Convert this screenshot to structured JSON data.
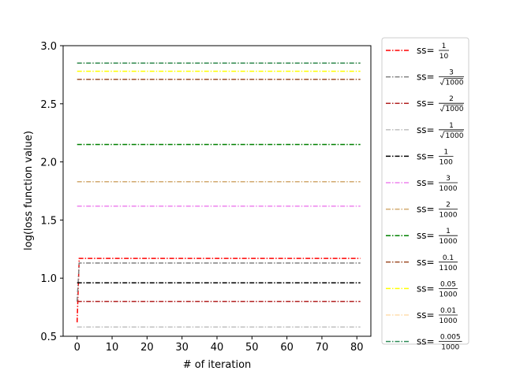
{
  "chart_data": {
    "type": "line",
    "xlabel": "# of iteration",
    "ylabel": "log(loss function value)",
    "xlim": [
      -4,
      84
    ],
    "ylim": [
      0.5,
      3.0
    ],
    "xticks": [
      "0",
      "10",
      "20",
      "30",
      "40",
      "50",
      "60",
      "70",
      "80"
    ],
    "yticks": [
      "0.5",
      "1.0",
      "1.5",
      "2.0",
      "2.5",
      "3.0"
    ],
    "legend_placement": "outside-right",
    "line_style": "dash-dot",
    "series": [
      {
        "name": "ss=1/10",
        "num": "1",
        "den": "10",
        "sqrt": false,
        "color": "#ff0000",
        "start": 0.62,
        "value": 1.17
      },
      {
        "name": "ss=3/√1000",
        "num": "3",
        "den": "1000",
        "sqrt": true,
        "color": "#808080",
        "start": 0.8,
        "value": 1.13
      },
      {
        "name": "ss=2/√1000",
        "num": "2",
        "den": "1000",
        "sqrt": true,
        "color": "#b22222",
        "start": 0.8,
        "value": 0.8
      },
      {
        "name": "ss=1/√1000",
        "num": "1",
        "den": "1000",
        "sqrt": true,
        "color": "#c0c0c0",
        "start": 0.58,
        "value": 0.58
      },
      {
        "name": "ss=1/100",
        "num": "1",
        "den": "100",
        "sqrt": false,
        "color": "#000000",
        "start": 0.96,
        "value": 0.96
      },
      {
        "name": "ss=3/1000",
        "num": "3",
        "den": "1000",
        "sqrt": false,
        "color": "#ee82ee",
        "start": 1.62,
        "value": 1.62
      },
      {
        "name": "ss=2/1000",
        "num": "2",
        "den": "1000",
        "sqrt": false,
        "color": "#d2a96e",
        "start": 1.83,
        "value": 1.83
      },
      {
        "name": "ss=1/1000",
        "num": "1",
        "den": "1000",
        "sqrt": false,
        "color": "#008000",
        "start": 2.15,
        "value": 2.15
      },
      {
        "name": "ss=0.1/1100",
        "num": "0.1",
        "den": "1100",
        "sqrt": false,
        "color": "#a0522d",
        "start": 2.71,
        "value": 2.71
      },
      {
        "name": "ss=0.05/1000",
        "num": "0.05",
        "den": "1000",
        "sqrt": false,
        "color": "#ffff00",
        "start": 2.78,
        "value": 2.78
      },
      {
        "name": "ss=0.01/1000",
        "num": "0.01",
        "den": "1000",
        "sqrt": false,
        "color": "#ffdead",
        "start": 2.85,
        "value": 2.85
      },
      {
        "name": "ss=0.005/1000",
        "num": "0.005",
        "den": "1000",
        "sqrt": false,
        "color": "#2e8b57",
        "start": 2.85,
        "value": 2.85
      }
    ],
    "x_end": 81
  }
}
